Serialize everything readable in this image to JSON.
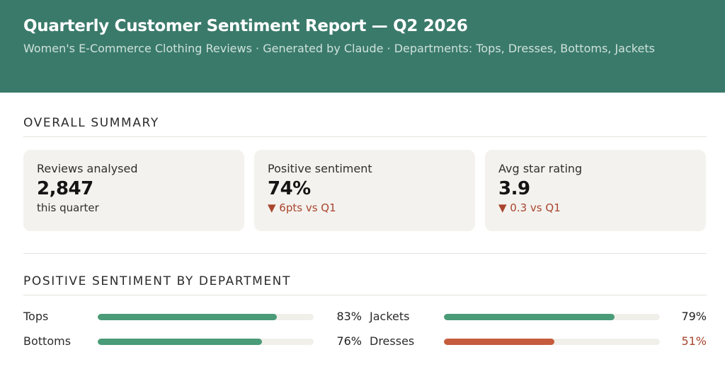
{
  "header": {
    "title": "Quarterly Customer Sentiment Report — Q2 2026",
    "subtitle": "Women's E-Commerce Clothing Reviews · Generated by Claude · Departments: Tops, Dresses, Bottoms, Jackets"
  },
  "summary": {
    "heading": "OVERALL SUMMARY",
    "cards": [
      {
        "label": "Reviews analysed",
        "value": "2,847",
        "sub": "this quarter"
      },
      {
        "label": "Positive sentiment",
        "value": "74%",
        "sub": "▼ 6pts vs Q1"
      },
      {
        "label": "Avg star rating",
        "value": "3.9",
        "sub": "▼ 0.3 vs Q1"
      }
    ]
  },
  "departments": {
    "heading": "POSITIVE SENTIMENT BY DEPARTMENT",
    "items": [
      {
        "name": "Tops",
        "value": 83,
        "label": "83%",
        "color": "#4a9b77"
      },
      {
        "name": "Jackets",
        "value": 79,
        "label": "79%",
        "color": "#4a9b77"
      },
      {
        "name": "Bottoms",
        "value": 76,
        "label": "76%",
        "color": "#4a9b77"
      },
      {
        "name": "Dresses",
        "value": 51,
        "label": "51%",
        "color": "#c65c3d"
      }
    ]
  },
  "colors": {
    "header_bg": "#3a7a6b",
    "positive": "#4a9b77",
    "negative": "#c65c3d",
    "negative_text": "#a8452f"
  }
}
